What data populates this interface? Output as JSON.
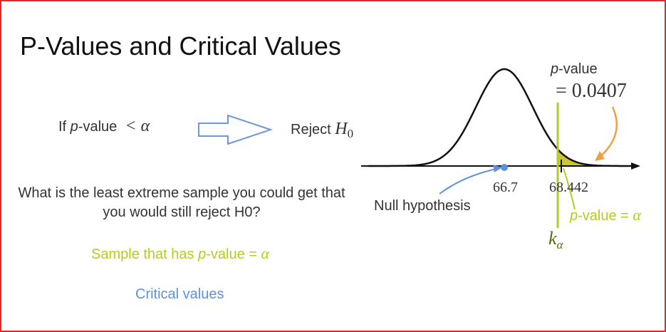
{
  "title": "P-Values and Critical Values",
  "rule": {
    "if_word": "If ",
    "p": "p",
    "value_word": "-value",
    "less_alpha": "< α",
    "reject_word": "Reject ",
    "h0": "H",
    "h0_sub": "0"
  },
  "question": "What is the least extreme sample you could get that you would still reject H0?",
  "sample_line": {
    "prefix": "Sample that has ",
    "p": "p",
    "suffix": "-value = ",
    "alpha": "α"
  },
  "critical_values": "Critical values",
  "graph": {
    "pvalue_label_p": "p",
    "pvalue_label_rest": "-value",
    "pvalue_number": "= 0.0407",
    "null_hypothesis": "Null hypothesis",
    "tick_mean": "66.7",
    "tick_observed": "68.442",
    "green_label_p": "p",
    "green_label_rest": "-value = ",
    "green_label_alpha": "α",
    "k": "k",
    "k_sub": "α"
  },
  "colors": {
    "border": "#e8262a",
    "accent_green": "#b5cc1e",
    "tail_fill": "#c4c21c",
    "blue": "#5f8fe0",
    "orange": "#f0a040",
    "arrow_outline": "#6f97d8"
  }
}
